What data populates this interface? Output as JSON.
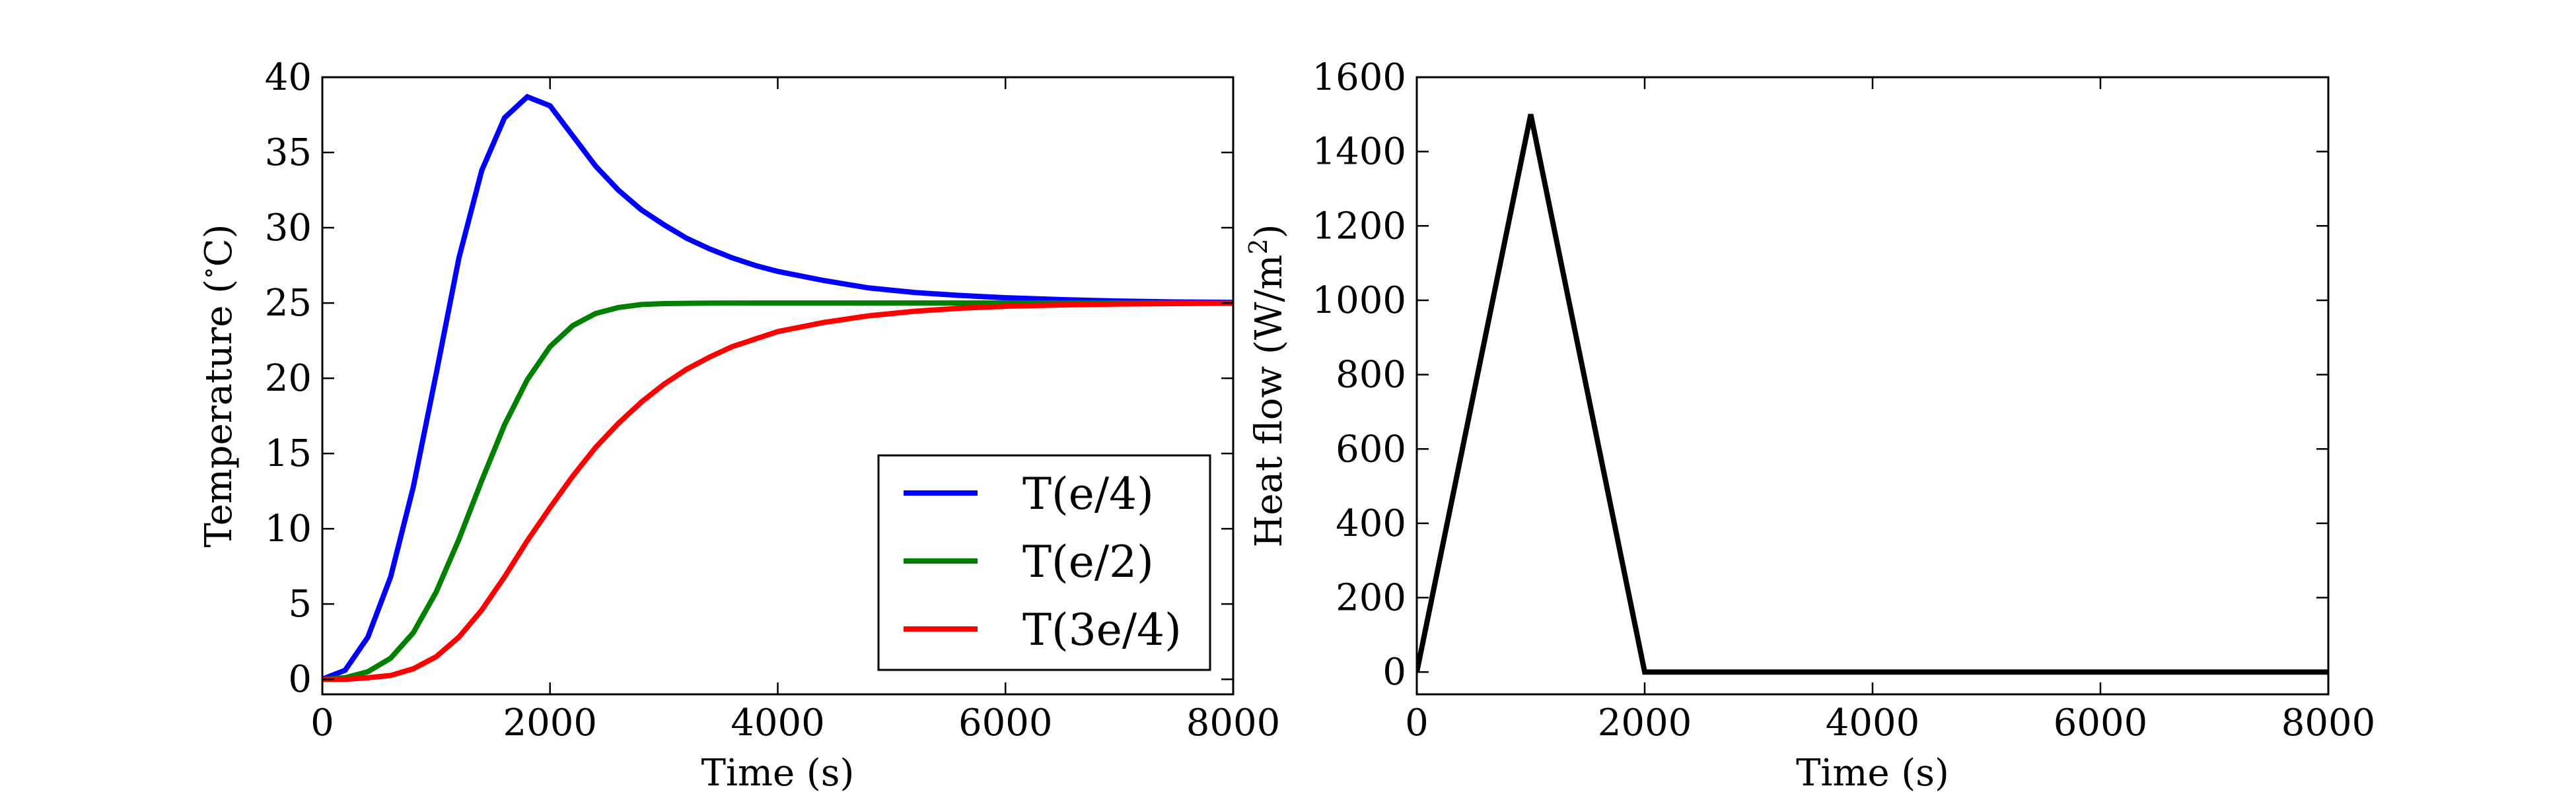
{
  "chart_data": [
    {
      "type": "line",
      "title": "",
      "xlabel": "Time (s)",
      "ylabel_main": "Temperature (",
      "ylabel_sup": "∘",
      "ylabel_tail": "C)",
      "xlim": [
        0,
        8000
      ],
      "ylim": [
        -1,
        40
      ],
      "xticks": [
        0,
        2000,
        4000,
        6000,
        8000
      ],
      "yticks": [
        0,
        5,
        10,
        15,
        20,
        25,
        30,
        35,
        40
      ],
      "grid": false,
      "legend": "lower-right",
      "series": [
        {
          "name": "T(e/4)",
          "color": "#0000ff",
          "x": [
            0,
            200,
            400,
            600,
            800,
            1000,
            1200,
            1400,
            1600,
            1800,
            2000,
            2200,
            2400,
            2600,
            2800,
            3000,
            3200,
            3400,
            3600,
            3800,
            4000,
            4400,
            4800,
            5200,
            5600,
            6000,
            6500,
            7000,
            7500,
            8000
          ],
          "y": [
            0,
            0.6,
            2.8,
            6.8,
            12.8,
            20.3,
            28.0,
            33.8,
            37.3,
            38.7,
            38.1,
            36.1,
            34.1,
            32.5,
            31.2,
            30.2,
            29.3,
            28.6,
            28.0,
            27.5,
            27.1,
            26.5,
            26.0,
            25.7,
            25.5,
            25.35,
            25.22,
            25.13,
            25.07,
            25.04
          ]
        },
        {
          "name": "T(e/2)",
          "color": "#008000",
          "x": [
            0,
            200,
            400,
            600,
            800,
            1000,
            1200,
            1400,
            1600,
            1800,
            2000,
            2200,
            2400,
            2600,
            2800,
            3000,
            3400,
            4000,
            5000,
            6000,
            7000,
            8000
          ],
          "y": [
            0,
            0.1,
            0.5,
            1.4,
            3.1,
            5.8,
            9.3,
            13.2,
            16.9,
            19.9,
            22.1,
            23.5,
            24.3,
            24.7,
            24.9,
            24.96,
            24.99,
            25.0,
            25.0,
            25.0,
            25.0,
            25.0
          ]
        },
        {
          "name": "T(3e/4)",
          "color": "#ff0000",
          "x": [
            0,
            200,
            400,
            600,
            800,
            1000,
            1200,
            1400,
            1600,
            1800,
            2000,
            2200,
            2400,
            2600,
            2800,
            3000,
            3200,
            3400,
            3600,
            3800,
            4000,
            4400,
            4800,
            5200,
            5600,
            6000,
            6500,
            7000,
            7500,
            8000
          ],
          "y": [
            0,
            0.0,
            0.1,
            0.25,
            0.7,
            1.5,
            2.8,
            4.6,
            6.8,
            9.2,
            11.4,
            13.5,
            15.4,
            17.0,
            18.4,
            19.6,
            20.6,
            21.4,
            22.1,
            22.6,
            23.1,
            23.7,
            24.15,
            24.45,
            24.65,
            24.78,
            24.87,
            24.93,
            24.96,
            24.98
          ]
        }
      ]
    },
    {
      "type": "line",
      "title": "",
      "xlabel": "Time (s)",
      "ylabel_main": "Heat flow (W/m",
      "ylabel_sup": "2",
      "ylabel_tail": ")",
      "xlim": [
        0,
        8000
      ],
      "ylim": [
        -60,
        1600
      ],
      "xticks": [
        0,
        2000,
        4000,
        6000,
        8000
      ],
      "yticks": [
        0,
        200,
        400,
        600,
        800,
        1000,
        1200,
        1400,
        1600
      ],
      "grid": false,
      "legend": "none",
      "series": [
        {
          "color": "#000000",
          "x": [
            0,
            1000,
            2000,
            8000
          ],
          "y": [
            0,
            1500,
            0,
            0
          ]
        }
      ]
    }
  ]
}
